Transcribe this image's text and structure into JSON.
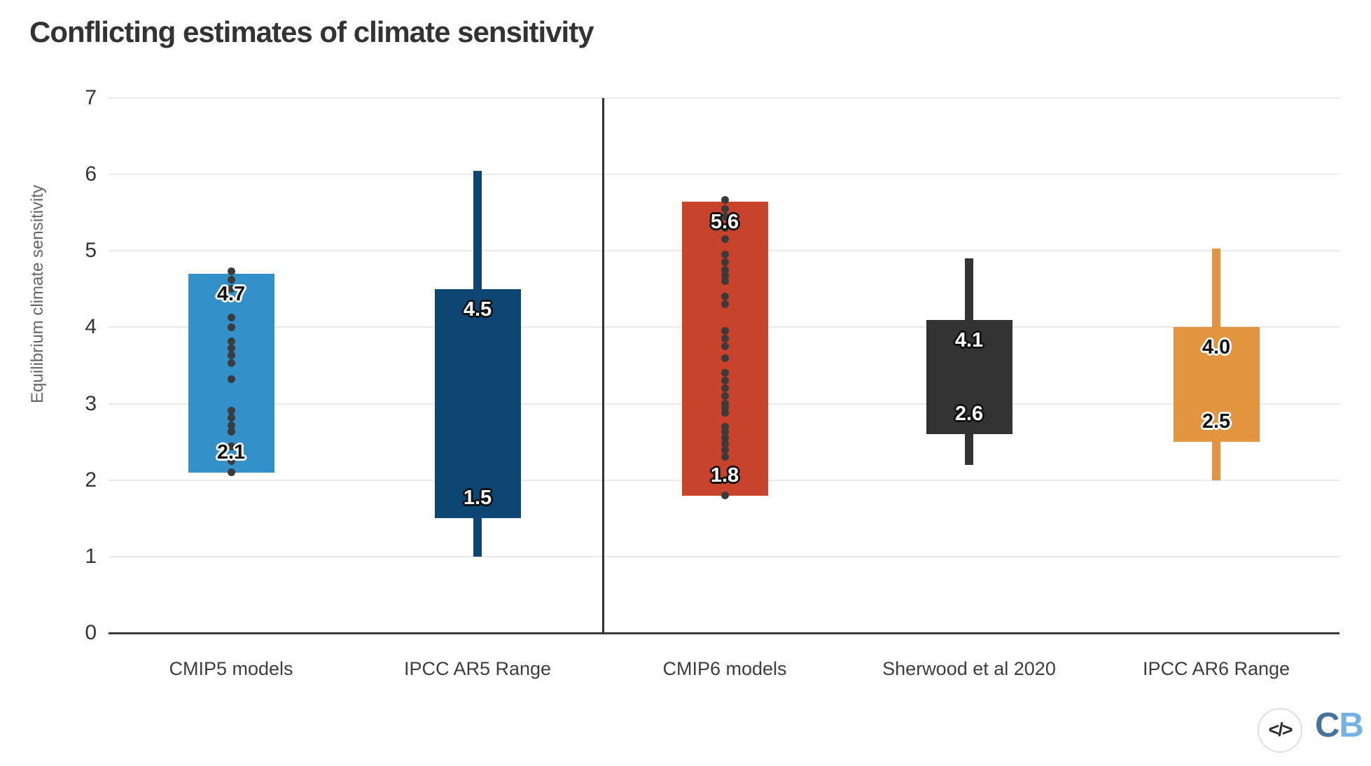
{
  "title": "Conflicting estimates of climate sensitivity",
  "y_axis": {
    "label": "Equilibrium climate sensitivity",
    "ticks": [
      "0",
      "1",
      "2",
      "3",
      "4",
      "5",
      "6",
      "7"
    ]
  },
  "x_axis": {
    "categories": [
      "CMIP5 models",
      "IPCC AR5 Range",
      "CMIP6 models",
      "Sherwood et al 2020",
      "IPCC AR6 Range"
    ]
  },
  "footer": {
    "code_icon_label": "</>",
    "logo_c": "C",
    "logo_b": "B"
  },
  "colors": {
    "cmip5_blue": "#3390c9",
    "ar5_navy": "#0e4673",
    "cmip6_red": "#c7432b",
    "sherwood_charcoal": "#333333",
    "ar6_orange": "#e2953e",
    "dot": "#3b3b3b",
    "gridline": "#e9e9e9",
    "axis_line": "#3a3a3a",
    "title_text": "#333333",
    "logo_c_blue": "#44749b",
    "logo_b_blue": "#73b2e2"
  },
  "chart_data": {
    "type": "box",
    "title": "Conflicting estimates of climate sensitivity",
    "ylabel": "Equilibrium climate sensitivity",
    "ylim": [
      0,
      7
    ],
    "grid": true,
    "categories": [
      "CMIP5 models",
      "IPCC AR5 Range",
      "CMIP6 models",
      "Sherwood et al 2020",
      "IPCC AR6 Range"
    ],
    "series": [
      {
        "name": "CMIP5 models",
        "color": "#3390c9",
        "box": [
          2.1,
          4.7
        ],
        "labels": [
          "2.1",
          "4.7"
        ],
        "label_style": "dark",
        "points": [
          4.73,
          4.62,
          4.5,
          4.13,
          4.0,
          3.82,
          3.72,
          3.63,
          3.53,
          3.32,
          2.91,
          2.82,
          2.72,
          2.63,
          2.44,
          2.25,
          2.1
        ]
      },
      {
        "name": "IPCC AR5 Range",
        "color": "#0e4673",
        "box": [
          1.5,
          4.5
        ],
        "whisker": [
          1.0,
          6.05
        ],
        "labels": [
          "1.5",
          "4.5"
        ],
        "label_style": "light"
      },
      {
        "name": "CMIP6 models",
        "color": "#c7432b",
        "box": [
          1.8,
          5.64
        ],
        "labels": [
          "1.8",
          "5.6"
        ],
        "label_style": "light",
        "points": [
          5.67,
          5.55,
          5.45,
          5.3,
          5.15,
          4.95,
          4.85,
          4.75,
          4.68,
          4.6,
          4.4,
          4.3,
          3.95,
          3.85,
          3.75,
          3.6,
          3.4,
          3.3,
          3.2,
          3.1,
          3.0,
          2.95,
          2.88,
          2.7,
          2.63,
          2.55,
          2.48,
          2.4,
          2.3,
          1.8
        ]
      },
      {
        "name": "Sherwood et al 2020",
        "color": "#333333",
        "box": [
          2.6,
          4.1
        ],
        "whisker": [
          2.2,
          4.9
        ],
        "labels": [
          "2.6",
          "4.1"
        ],
        "label_style": "light"
      },
      {
        "name": "IPCC AR6 Range",
        "color": "#e2953e",
        "box": [
          2.5,
          4.0
        ],
        "whisker": [
          2.0,
          5.03
        ],
        "labels": [
          "2.5",
          "4.0"
        ],
        "label_style": "dark"
      }
    ],
    "divider_between": [
      "IPCC AR5 Range",
      "CMIP6 models"
    ]
  }
}
